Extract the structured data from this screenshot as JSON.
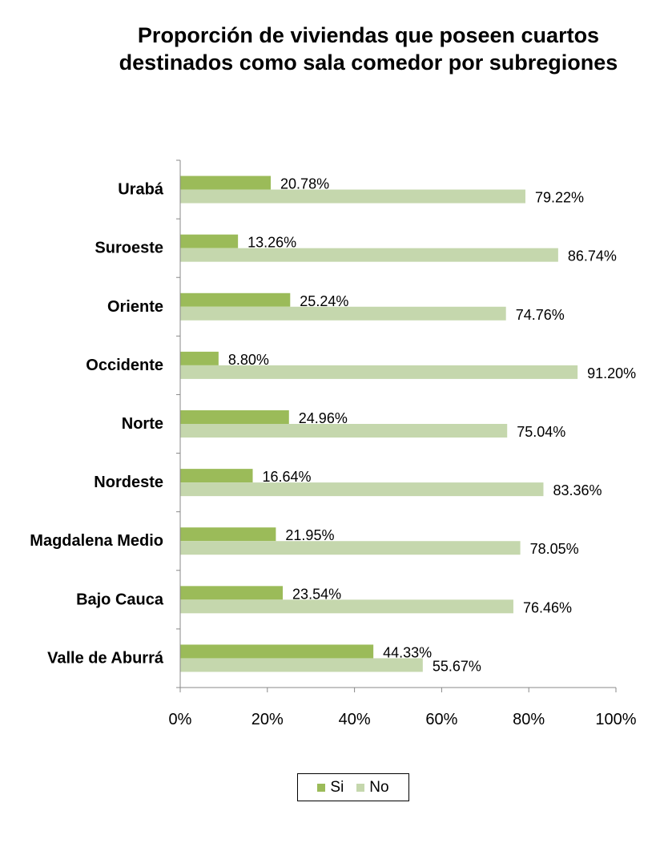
{
  "chart_data": {
    "type": "bar",
    "orientation": "horizontal",
    "title": "Proporción de viviendas que poseen cuartos destinados como sala comedor por subregiones",
    "categories": [
      "Urabá",
      "Suroeste",
      "Oriente",
      "Occidente",
      "Norte",
      "Nordeste",
      "Magdalena Medio",
      "Bajo Cauca",
      "Valle de Aburrá"
    ],
    "series": [
      {
        "name": "Si",
        "color": "#9bbb59",
        "values": [
          20.78,
          13.26,
          25.24,
          8.8,
          24.96,
          16.64,
          21.95,
          23.54,
          44.33
        ],
        "labels": [
          "20.78%",
          "13.26%",
          "25.24%",
          "8.80%",
          "24.96%",
          "16.64%",
          "21.95%",
          "23.54%",
          "44.33%"
        ]
      },
      {
        "name": "No",
        "color": "#c5d7ad",
        "values": [
          79.22,
          86.74,
          74.76,
          91.2,
          75.04,
          83.36,
          78.05,
          76.46,
          55.67
        ],
        "labels": [
          "79.22%",
          "86.74%",
          "74.76%",
          "91.20%",
          "75.04%",
          "83.36%",
          "78.05%",
          "76.46%",
          "55.67%"
        ]
      }
    ],
    "xlim": [
      0,
      100
    ],
    "xticks": [
      "0%",
      "20%",
      "40%",
      "60%",
      "80%",
      "100%"
    ],
    "grid": false,
    "legend_position": "bottom"
  }
}
